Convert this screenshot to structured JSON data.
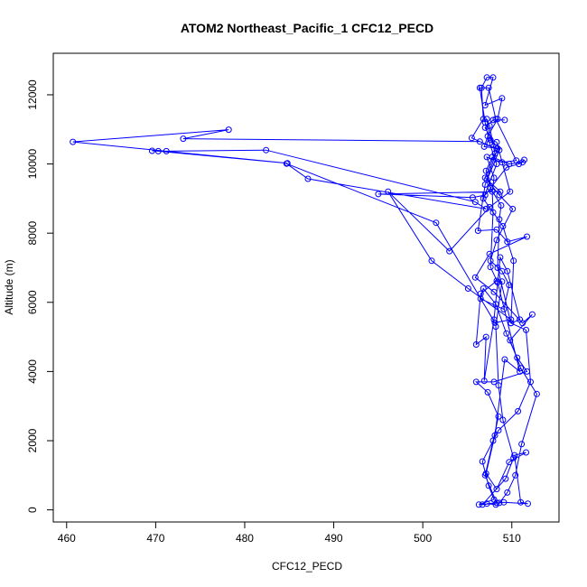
{
  "chart_data": {
    "type": "scatter",
    "title": "ATOM2 Northeast_Pacific_1 CFC12_PECD",
    "xlabel": "CFC12_PECD",
    "ylabel": "Altitude (m)",
    "xlim": [
      458.5,
      515.3
    ],
    "ylim": [
      -350,
      13200
    ],
    "xticks": [
      460,
      470,
      480,
      490,
      500,
      510
    ],
    "yticks": [
      0,
      2000,
      4000,
      6000,
      8000,
      10000,
      12000
    ],
    "grid": false,
    "legend": "none",
    "color": "#0000ff",
    "series": [
      {
        "connected": true,
        "points": [
          [
            508.2,
            150
          ],
          [
            507.2,
            180
          ],
          [
            509.1,
            220
          ],
          [
            511.8,
            180
          ],
          [
            511.0,
            220
          ],
          [
            510.3,
            1580
          ],
          [
            511.6,
            1660
          ],
          [
            509.7,
            1380
          ],
          [
            508.3,
            600
          ],
          [
            507.1,
            1050
          ],
          [
            508.1,
            2150
          ],
          [
            509.2,
            4350
          ],
          [
            510.9,
            4000
          ],
          [
            508.4,
            6580
          ],
          [
            507.6,
            7020
          ],
          [
            507.9,
            8600
          ],
          [
            507.8,
            9200
          ],
          [
            508.0,
            9600
          ],
          [
            507.2,
            10200
          ],
          [
            508.9,
            10050
          ],
          [
            510.5,
            10100
          ],
          [
            508.2,
            11300
          ],
          [
            507.4,
            12200
          ],
          [
            506.4,
            12200
          ],
          [
            507.0,
            11200
          ],
          [
            507.5,
            10600
          ],
          [
            508.3,
            10000
          ],
          [
            506.8,
            9000
          ],
          [
            509.0,
            8200
          ],
          [
            510.2,
            7200
          ],
          [
            509.9,
            5400
          ],
          [
            511.6,
            5200
          ],
          [
            512.1,
            3700
          ],
          [
            510.7,
            2850
          ],
          [
            508.5,
            2300
          ],
          [
            506.7,
            1400
          ],
          [
            507.4,
            700
          ],
          [
            508.0,
            300
          ],
          [
            506.3,
            150
          ],
          [
            508.6,
            200
          ],
          [
            509.5,
            500
          ],
          [
            510.4,
            1000
          ],
          [
            511.1,
            1900
          ],
          [
            512.8,
            3350
          ],
          [
            511.0,
            4100
          ],
          [
            509.8,
            4900
          ],
          [
            512.3,
            5650
          ],
          [
            511.2,
            5400
          ],
          [
            508.0,
            6300
          ],
          [
            505.9,
            6720
          ],
          [
            507.5,
            7400
          ],
          [
            511.7,
            7900
          ],
          [
            509.5,
            7750
          ],
          [
            508.3,
            8100
          ],
          [
            506.2,
            8070
          ],
          [
            507.0,
            9400
          ],
          [
            508.6,
            10400
          ],
          [
            505.5,
            10750
          ],
          [
            506.8,
            11300
          ],
          [
            506.6,
            12200
          ],
          [
            507.2,
            12500
          ],
          [
            507.9,
            12500
          ],
          [
            507.0,
            11700
          ],
          [
            508.9,
            11900
          ],
          [
            508.4,
            11300
          ],
          [
            507.3,
            10800
          ],
          [
            506.9,
            10500
          ],
          [
            508.4,
            10450
          ],
          [
            507.2,
            9550
          ],
          [
            508.6,
            9100
          ],
          [
            510.1,
            8700
          ],
          [
            508.3,
            7800
          ],
          [
            507.6,
            7200
          ],
          [
            508.9,
            6900
          ],
          [
            509.7,
            6500
          ],
          [
            509.1,
            5800
          ],
          [
            506.5,
            6100
          ],
          [
            506.8,
            6400
          ],
          [
            508.2,
            5950
          ],
          [
            509.4,
            5100
          ],
          [
            510.6,
            4400
          ],
          [
            511.7,
            4000
          ],
          [
            508.0,
            3700
          ],
          [
            506.0,
            3700
          ],
          [
            507.3,
            3400
          ],
          [
            508.5,
            2700
          ],
          [
            507.9,
            2000
          ],
          [
            507.0,
            1000
          ],
          [
            508.3,
            200
          ],
          [
            506.7,
            150
          ],
          [
            509.3,
            900
          ],
          [
            510.2,
            1500
          ],
          [
            509.0,
            2600
          ],
          [
            508.5,
            3600
          ],
          [
            508.2,
            5300
          ],
          [
            508.9,
            6600
          ],
          [
            508.3,
            6620
          ],
          [
            506.5,
            6250
          ],
          [
            506.0,
            4780
          ],
          [
            507.1,
            5000
          ],
          [
            506.9,
            3730
          ],
          [
            508.0,
            5500
          ],
          [
            508.7,
            7300
          ],
          [
            509.5,
            6900
          ],
          [
            510.9,
            5500
          ],
          [
            509.9,
            5400
          ],
          [
            508.4,
            7000
          ],
          [
            508.6,
            8400
          ],
          [
            508.8,
            8800
          ],
          [
            507.6,
            9300
          ],
          [
            507.1,
            9800
          ],
          [
            507.8,
            10200
          ],
          [
            509.7,
            10000
          ],
          [
            511.2,
            10050
          ],
          [
            511.4,
            10120
          ],
          [
            510.8,
            10000
          ],
          [
            509.4,
            9900
          ],
          [
            507.0,
            9100
          ],
          [
            505.6,
            9030
          ],
          [
            495.0,
            9130
          ],
          [
            508.7,
            9200
          ],
          [
            507.0,
            9600
          ],
          [
            508.1,
            10300
          ],
          [
            507.5,
            11100
          ],
          [
            507.2,
            11300
          ],
          [
            507.6,
            10700
          ],
          [
            508.3,
            10630
          ],
          [
            509.8,
            9200
          ],
          [
            507.5,
            8750
          ],
          [
            503.0,
            7480
          ],
          [
            496.1,
            9200
          ],
          [
            501.0,
            7200
          ],
          [
            505.1,
            6400
          ],
          [
            509.9,
            5500
          ],
          [
            508.1,
            5410
          ],
          [
            501.5,
            8300
          ],
          [
            484.7,
            10010
          ],
          [
            487.1,
            9570
          ],
          [
            507.1,
            8700
          ],
          [
            505.9,
            8900
          ],
          [
            482.4,
            10400
          ],
          [
            471.2,
            10370
          ],
          [
            469.6,
            10380
          ],
          [
            470.3,
            10370
          ],
          [
            484.8,
            10020
          ],
          [
            460.7,
            10640
          ],
          [
            478.2,
            10990
          ],
          [
            473.1,
            10730
          ],
          [
            506.4,
            10650
          ],
          [
            508.3,
            10440
          ],
          [
            507.0,
            11050
          ],
          [
            507.9,
            11270
          ],
          [
            509.2,
            11270
          ]
        ]
      }
    ]
  }
}
